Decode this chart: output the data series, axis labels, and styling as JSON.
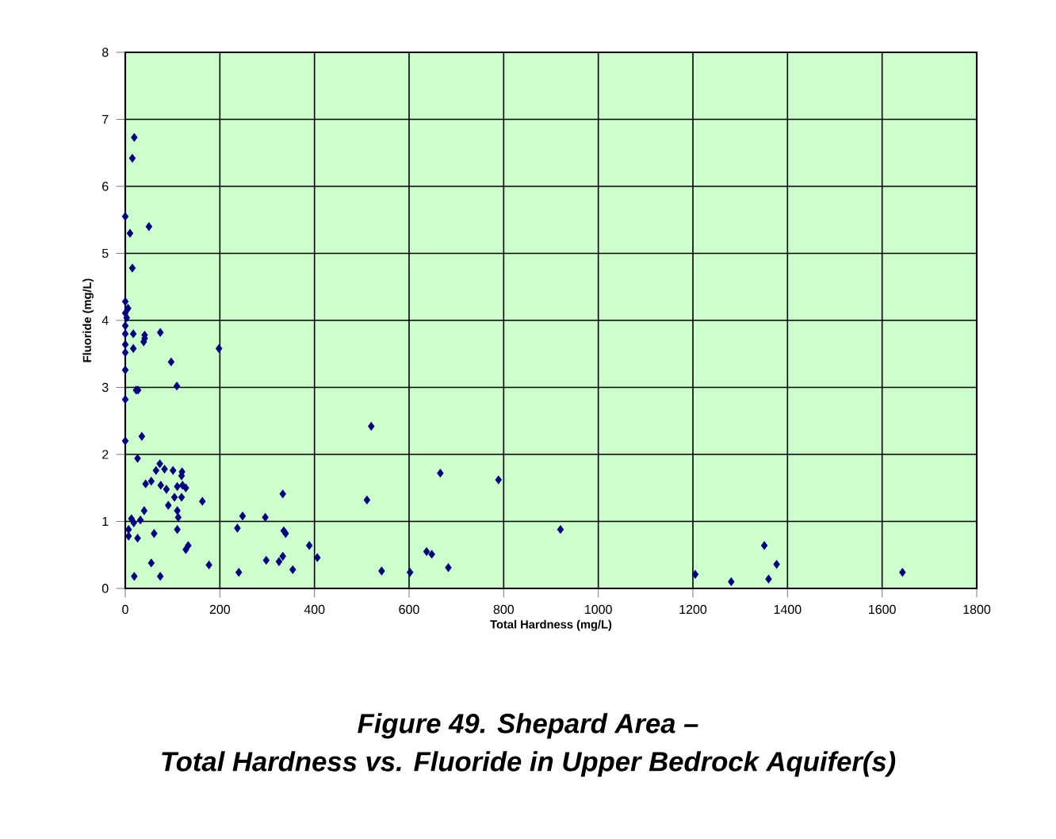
{
  "chart_data": {
    "type": "scatter",
    "title": "Figure 49. Shepard Area –",
    "subtitle": "Total Hardness vs. Fluoride in Upper Bedrock Aquifer(s)",
    "xlabel": "Total Hardness (mg/L)",
    "ylabel": "Fluoride (mg/L)",
    "xlim": [
      0,
      1800
    ],
    "ylim": [
      0,
      8
    ],
    "xticks": [
      0,
      200,
      400,
      600,
      800,
      1000,
      1200,
      1400,
      1600,
      1800
    ],
    "yticks": [
      0,
      1,
      2,
      3,
      4,
      5,
      6,
      7,
      8
    ],
    "grid": true,
    "marker": "diamond",
    "series": [
      {
        "color": "#000080",
        "x": [
          3,
          0,
          0,
          17,
          0,
          0,
          17,
          41,
          39,
          74,
          198,
          0,
          97,
          109,
          23,
          27,
          0,
          0,
          35,
          26,
          73,
          65,
          83,
          101,
          120,
          119,
          43,
          55,
          75,
          87,
          110,
          121,
          128,
          104,
          119,
          163,
          333,
          511,
          520,
          91,
          110,
          112,
          40,
          13,
          18,
          32,
          7,
          7,
          26,
          61,
          110,
          248,
          296,
          237,
          335,
          339,
          133,
          128,
          55,
          177,
          19,
          74,
          240,
          298,
          325,
          333,
          354,
          389,
          406,
          19,
          15,
          0,
          10,
          50,
          15,
          0,
          0,
          6,
          41,
          666,
          789,
          920,
          637,
          648,
          542,
          602,
          683,
          1205,
          1281,
          1351,
          1377,
          1360,
          1643
        ],
        "values": [
          4.04,
          3.92,
          3.8,
          3.8,
          3.64,
          3.52,
          3.58,
          3.78,
          3.68,
          3.82,
          3.58,
          3.26,
          3.38,
          3.02,
          2.96,
          2.96,
          2.82,
          2.2,
          2.27,
          1.94,
          1.86,
          1.76,
          1.78,
          1.76,
          1.74,
          1.68,
          1.56,
          1.6,
          1.54,
          1.48,
          1.52,
          1.54,
          1.5,
          1.36,
          1.36,
          1.3,
          1.41,
          1.32,
          2.42,
          1.24,
          1.16,
          1.06,
          1.16,
          1.04,
          0.98,
          1.02,
          0.88,
          0.78,
          0.75,
          0.82,
          0.88,
          1.08,
          1.06,
          0.9,
          0.86,
          0.82,
          0.64,
          0.58,
          0.38,
          0.35,
          0.18,
          0.18,
          0.24,
          0.42,
          0.4,
          0.48,
          0.28,
          0.64,
          0.46,
          6.73,
          6.42,
          5.55,
          5.3,
          5.4,
          4.78,
          4.28,
          4.11,
          4.18,
          3.73,
          1.72,
          1.62,
          0.88,
          0.55,
          0.51,
          0.26,
          0.24,
          0.31,
          0.21,
          0.1,
          0.64,
          0.36,
          0.14,
          0.24
        ]
      }
    ]
  }
}
